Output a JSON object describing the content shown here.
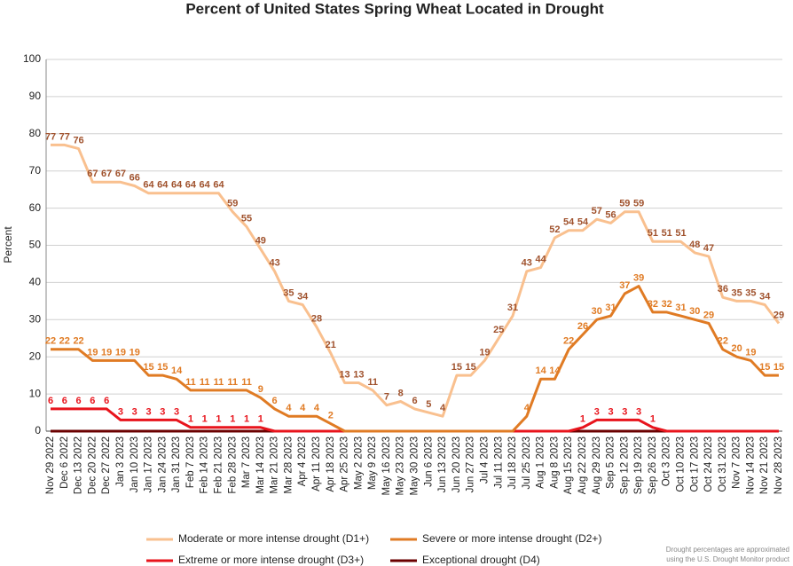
{
  "chart_data": {
    "type": "line",
    "title": "Percent of United States Spring Wheat Located in Drought",
    "y_label": "Percent",
    "footnote": [
      "Drought percentages are approximated",
      "using the U.S. Drought Monitor product"
    ],
    "categories": [
      "Nov 29 2022",
      "Dec 6 2022",
      "Dec 13 2022",
      "Dec 20 2022",
      "Dec 27 2022",
      "Jan 3 2023",
      "Jan 10 2023",
      "Jan 17 2023",
      "Jan 24 2023",
      "Jan 31 2023",
      "Feb 7 2023",
      "Feb 14 2023",
      "Feb 21 2023",
      "Feb 28 2023",
      "Mar 7 2023",
      "Mar 14 2023",
      "Mar 21 2023",
      "Mar 28 2023",
      "Apr 4 2023",
      "Apr 11 2023",
      "Apr 18 2023",
      "Apr 25 2023",
      "May 2 2023",
      "May 9 2023",
      "May 16 2023",
      "May 23 2023",
      "May 30 2023",
      "Jun 6 2023",
      "Jun 13 2023",
      "Jun 20 2023",
      "Jun 27 2023",
      "Jul 4 2023",
      "Jul 11 2023",
      "Jul 18 2023",
      "Jul 25 2023",
      "Aug 1 2023",
      "Aug 8 2023",
      "Aug 15 2023",
      "Aug 22 2023",
      "Aug 29 2023",
      "Sep 5 2023",
      "Sep 12 2023",
      "Sep 19 2023",
      "Sep 26 2023",
      "Oct 3 2023",
      "Oct 10 2023",
      "Oct 17 2023",
      "Oct 24 2023",
      "Oct 31 2023",
      "Nov 7 2023",
      "Nov 14 2023",
      "Nov 21 2023",
      "Nov 28 2023"
    ],
    "ylim": [
      0,
      100
    ],
    "yticks": [
      0,
      10,
      20,
      30,
      40,
      50,
      60,
      70,
      80,
      90,
      100
    ],
    "grid": true,
    "legend": "bottom",
    "series": [
      {
        "name": "Moderate or more intense drought (D1+)",
        "color": "#f9c08f",
        "label_color": "#a0522d",
        "values": [
          77,
          77,
          76,
          67,
          67,
          67,
          66,
          64,
          64,
          64,
          64,
          64,
          64,
          59,
          55,
          49,
          43,
          35,
          34,
          28,
          21,
          13,
          13,
          11,
          7,
          8,
          6,
          5,
          4,
          15,
          15,
          19,
          25,
          31,
          43,
          44,
          52,
          54,
          54,
          57,
          56,
          59,
          59,
          51,
          51,
          51,
          48,
          47,
          36,
          35,
          35,
          34,
          29
        ],
        "value_labels": [
          "77",
          "77",
          "76",
          "67",
          "67",
          "67",
          "66",
          "64",
          "64",
          "64",
          "64",
          "64",
          "64",
          "59",
          "55",
          "49",
          "43",
          "35",
          "34",
          "28",
          "21",
          "13",
          "13",
          "11",
          "7",
          "8",
          "6",
          "5",
          "4",
          "15",
          "15",
          "19",
          "25",
          "31",
          "43",
          "44",
          "52",
          "54",
          "54",
          "57",
          "56",
          "59",
          "59",
          "51",
          "51",
          "51",
          "48",
          "47",
          "36",
          "35",
          "35",
          "34",
          "29"
        ]
      },
      {
        "name": "Severe or more intense drought (D2+)",
        "color": "#e07b24",
        "label_color": "#e07b24",
        "values": [
          22,
          22,
          22,
          19,
          19,
          19,
          19,
          15,
          15,
          14,
          11,
          11,
          11,
          11,
          11,
          9,
          6,
          4,
          4,
          4,
          2,
          0,
          0,
          0,
          0,
          0,
          0,
          0,
          0,
          0,
          0,
          0,
          0,
          0,
          4,
          14,
          14,
          22,
          26,
          30,
          31,
          37,
          39,
          32,
          32,
          31,
          30,
          29,
          22,
          20,
          19,
          15,
          15
        ],
        "value_labels": [
          "22",
          "22",
          "22",
          "19",
          "19",
          "19",
          "19",
          "15",
          "15",
          "14",
          "11",
          "11",
          "11",
          "11",
          "11",
          "9",
          "6",
          "4",
          "4",
          "4",
          "2",
          null,
          null,
          null,
          null,
          null,
          null,
          null,
          null,
          null,
          null,
          null,
          null,
          null,
          "4",
          "14",
          "14",
          "22",
          "26",
          "30",
          "31",
          "37",
          "39",
          "32",
          "32",
          "31",
          "30",
          "29",
          "22",
          "20",
          "19",
          "15",
          "15"
        ]
      },
      {
        "name": "Extreme or more intense drought (D3+)",
        "color": "#e8141c",
        "label_color": "#e8141c",
        "values": [
          6,
          6,
          6,
          6,
          6,
          3,
          3,
          3,
          3,
          3,
          1,
          1,
          1,
          1,
          1,
          1,
          0,
          0,
          0,
          0,
          0,
          0,
          0,
          0,
          0,
          0,
          0,
          0,
          0,
          0,
          0,
          0,
          0,
          0,
          0,
          0,
          0,
          0,
          1,
          3,
          3,
          3,
          3,
          1,
          0,
          0,
          0,
          0,
          0,
          0,
          0,
          0,
          0
        ],
        "value_labels": [
          "6",
          "6",
          "6",
          "6",
          "6",
          "3",
          "3",
          "3",
          "3",
          "3",
          "1",
          "1",
          "1",
          "1",
          "1",
          "1",
          null,
          null,
          null,
          null,
          null,
          null,
          null,
          null,
          null,
          null,
          null,
          null,
          null,
          null,
          null,
          null,
          null,
          null,
          null,
          null,
          null,
          null,
          "1",
          "3",
          "3",
          "3",
          "3",
          "1",
          null,
          null,
          null,
          null,
          null,
          null,
          null,
          null,
          null
        ]
      },
      {
        "name": "Exceptional drought (D4)",
        "color": "#6b0000",
        "label_color": "#6b0000",
        "values": [
          0,
          0,
          0,
          0,
          0,
          0,
          0,
          0,
          0,
          0,
          0,
          0,
          0,
          0,
          0,
          0,
          0,
          0,
          0,
          0,
          0,
          0,
          0,
          0,
          0,
          0,
          0,
          0,
          0,
          0,
          0,
          0,
          0,
          0,
          0,
          0,
          0,
          0,
          0,
          0,
          0,
          0,
          0,
          0,
          0,
          0,
          0,
          0,
          0,
          0,
          0,
          0,
          0
        ]
      }
    ]
  }
}
